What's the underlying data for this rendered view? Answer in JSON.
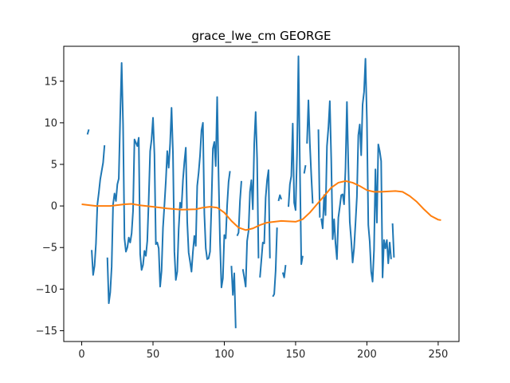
{
  "chart_data": {
    "type": "line",
    "title": "grace_lwe_cm GEORGE",
    "xlabel": "",
    "ylabel": "",
    "xlim": [
      -12.6,
      264.6
    ],
    "ylim": [
      -16.3,
      19.2
    ],
    "xticks": [
      0,
      50,
      100,
      150,
      200,
      250
    ],
    "yticks": [
      -15,
      -10,
      -5,
      0,
      5,
      10,
      15
    ],
    "grid": false,
    "legend": "none",
    "colors": {
      "raw": "#1f77b4",
      "smooth": "#ff7f0e",
      "axes": "#000000"
    },
    "series": [
      {
        "color": "#1f77b4",
        "segments": [
          [
            [
              4,
              8.6
            ],
            [
              5,
              9.2
            ]
          ],
          [
            [
              7,
              -5.3
            ],
            [
              8,
              -8.3
            ],
            [
              9,
              -7.2
            ],
            [
              10,
              -4.5
            ],
            [
              11,
              0.2
            ],
            [
              12,
              1.6
            ],
            [
              13,
              3.2
            ],
            [
              14,
              4.2
            ],
            [
              15,
              5.2
            ],
            [
              16,
              7.3
            ]
          ],
          [
            [
              18,
              -6.2
            ],
            [
              19,
              -11.7
            ],
            [
              20,
              -10.4
            ],
            [
              21,
              -7.3
            ],
            [
              22,
              0.2
            ],
            [
              23,
              1.5
            ],
            [
              24,
              0.6
            ],
            [
              25,
              2.6
            ],
            [
              26,
              3.3
            ],
            [
              27,
              10.8
            ],
            [
              28,
              17.2
            ],
            [
              29,
              9.8
            ],
            [
              30,
              -3.9
            ],
            [
              31,
              -5.5
            ],
            [
              32,
              -5.0
            ],
            [
              33,
              -3.8
            ],
            [
              34,
              -4.4
            ],
            [
              35,
              -3.3
            ],
            [
              36,
              -0.6
            ],
            [
              37,
              8.0
            ],
            [
              38,
              7.6
            ],
            [
              39,
              7.2
            ],
            [
              40,
              8.2
            ],
            [
              41,
              -5.8
            ],
            [
              42,
              -7.7
            ],
            [
              43,
              -7.1
            ],
            [
              44,
              -5.4
            ],
            [
              45,
              -6.0
            ],
            [
              46,
              -4.2
            ],
            [
              47,
              0.8
            ],
            [
              48,
              6.6
            ],
            [
              49,
              8.0
            ],
            [
              50,
              10.6
            ],
            [
              51,
              6.2
            ],
            [
              52,
              -4.6
            ],
            [
              53,
              -4.4
            ],
            [
              54,
              -5.1
            ],
            [
              55,
              -9.7
            ],
            [
              56,
              -7.8
            ],
            [
              57,
              -2.6
            ],
            [
              58,
              0.1
            ],
            [
              59,
              3.0
            ],
            [
              60,
              6.6
            ],
            [
              61,
              4.6
            ],
            [
              62,
              7.5
            ],
            [
              63,
              11.8
            ],
            [
              64,
              6.3
            ],
            [
              65,
              -5.5
            ],
            [
              66,
              -8.9
            ],
            [
              67,
              -7.9
            ],
            [
              68,
              -2.8
            ],
            [
              69,
              0.4
            ],
            [
              70,
              -0.2
            ],
            [
              71,
              3.1
            ],
            [
              72,
              5.3
            ],
            [
              73,
              7.0
            ],
            [
              74,
              -1.9
            ],
            [
              75,
              -5.6
            ],
            [
              76,
              -6.7
            ],
            [
              77,
              -7.9
            ],
            [
              78,
              -5.5
            ],
            [
              79,
              -3.6
            ],
            [
              80,
              -4.8
            ],
            [
              81,
              2.4
            ],
            [
              82,
              4.0
            ],
            [
              83,
              6.1
            ],
            [
              84,
              9.1
            ],
            [
              85,
              10.0
            ],
            [
              86,
              -0.9
            ],
            [
              87,
              -5.1
            ],
            [
              88,
              -6.4
            ],
            [
              89,
              -6.3
            ],
            [
              90,
              -5.5
            ],
            [
              91,
              0.1
            ],
            [
              92,
              6.9
            ],
            [
              93,
              7.7
            ],
            [
              94,
              4.8
            ],
            [
              95,
              13.1
            ],
            [
              96,
              3.5
            ],
            [
              97,
              -4.4
            ],
            [
              98,
              -9.8
            ],
            [
              99,
              -8.7
            ],
            [
              100,
              -3.5
            ],
            [
              101,
              -3.9
            ],
            [
              102,
              0.1
            ],
            [
              103,
              2.9
            ],
            [
              104,
              4.2
            ]
          ],
          [
            [
              105,
              -7.2
            ],
            [
              106,
              -10.7
            ],
            [
              107,
              -8.1
            ],
            [
              108,
              -14.7
            ]
          ],
          [
            [
              109,
              -3.6
            ],
            [
              110,
              -3.2
            ],
            [
              111,
              0.6
            ],
            [
              112,
              3.0
            ]
          ],
          [
            [
              113,
              -7.6
            ],
            [
              114,
              -8.6
            ],
            [
              115,
              -9.7
            ],
            [
              116,
              -4.2
            ],
            [
              117,
              -3.0
            ],
            [
              118,
              1.7
            ],
            [
              119,
              3.1
            ],
            [
              120,
              -0.4
            ],
            [
              121,
              7.5
            ],
            [
              122,
              11.3
            ],
            [
              123,
              5.7
            ],
            [
              124,
              -6.3
            ]
          ],
          [
            [
              125,
              -8.6
            ],
            [
              126,
              -6.5
            ],
            [
              127,
              -4.4
            ],
            [
              128,
              -4.5
            ],
            [
              129,
              1.0
            ],
            [
              130,
              3.1
            ],
            [
              131,
              4.3
            ],
            [
              132,
              -6.3
            ]
          ],
          [
            [
              134,
              -10.9
            ],
            [
              135,
              -10.6
            ],
            [
              136,
              -7.8
            ],
            [
              137,
              -2.6
            ]
          ],
          [
            [
              138,
              0.6
            ],
            [
              139,
              1.3
            ],
            [
              140,
              0.8
            ]
          ],
          [
            [
              141,
              -8.0
            ],
            [
              142,
              -8.6
            ],
            [
              143,
              -7.1
            ]
          ],
          [
            [
              145,
              -0.1
            ],
            [
              146,
              2.6
            ],
            [
              147,
              3.6
            ],
            [
              148,
              9.9
            ],
            [
              149,
              0.4
            ],
            [
              150,
              -0.5
            ],
            [
              151,
              6.2
            ],
            [
              152,
              18.0
            ],
            [
              153,
              4.9
            ],
            [
              154,
              -7.0
            ],
            [
              155,
              -6.0
            ]
          ],
          [
            [
              156,
              3.9
            ],
            [
              157,
              4.9
            ]
          ],
          [
            [
              158,
              7.5
            ],
            [
              159,
              12.7
            ],
            [
              160,
              7.5
            ],
            [
              161,
              3.7
            ],
            [
              162,
              0.3
            ]
          ],
          [
            [
              166,
              9.2
            ],
            [
              167,
              -1.4
            ]
          ],
          [
            [
              168,
              -1.5
            ],
            [
              169,
              -2.7
            ],
            [
              170,
              1.3
            ],
            [
              171,
              -1.1
            ],
            [
              172,
              7.2
            ],
            [
              173,
              9.4
            ],
            [
              174,
              12.6
            ],
            [
              175,
              5.6
            ],
            [
              176,
              -4.0
            ],
            [
              177,
              -1.6
            ],
            [
              178,
              -4.5
            ],
            [
              179,
              -6.4
            ],
            [
              180,
              -1.4
            ],
            [
              181,
              -0.1
            ],
            [
              182,
              1.3
            ],
            [
              183,
              1.4
            ],
            [
              184,
              0.2
            ],
            [
              185,
              4.5
            ],
            [
              186,
              12.5
            ],
            [
              187,
              4.8
            ],
            [
              188,
              -1.9
            ],
            [
              189,
              -4.1
            ],
            [
              190,
              -6.8
            ],
            [
              191,
              -5.1
            ],
            [
              192,
              -2.1
            ],
            [
              193,
              1.1
            ],
            [
              194,
              8.5
            ],
            [
              195,
              9.8
            ],
            [
              196,
              6.1
            ],
            [
              197,
              12.2
            ],
            [
              198,
              13.7
            ],
            [
              199,
              17.7
            ],
            [
              200,
              10.4
            ],
            [
              201,
              -2.3
            ],
            [
              202,
              -4.3
            ],
            [
              203,
              -7.9
            ],
            [
              204,
              -9.1
            ],
            [
              205,
              -5.3
            ],
            [
              206,
              4.4
            ],
            [
              207,
              -2.0
            ],
            [
              208,
              7.4
            ],
            [
              209,
              6.6
            ],
            [
              210,
              5.4
            ],
            [
              211,
              -8.6
            ],
            [
              212,
              -4.1
            ],
            [
              213,
              -5.1
            ],
            [
              214,
              -4.1
            ],
            [
              215,
              -6.9
            ],
            [
              216,
              -4.4
            ],
            [
              217,
              -6.4
            ]
          ],
          [
            [
              218,
              -2.1
            ],
            [
              219,
              -6.2
            ]
          ]
        ]
      },
      {
        "color": "#ff7f0e",
        "points": [
          [
            0,
            0.2
          ],
          [
            10,
            0.0
          ],
          [
            20,
            0.0
          ],
          [
            30,
            0.2
          ],
          [
            35,
            0.25
          ],
          [
            40,
            0.1
          ],
          [
            50,
            -0.1
          ],
          [
            60,
            -0.3
          ],
          [
            70,
            -0.45
          ],
          [
            80,
            -0.4
          ],
          [
            85,
            -0.2
          ],
          [
            90,
            -0.1
          ],
          [
            95,
            -0.2
          ],
          [
            100,
            -0.8
          ],
          [
            105,
            -1.8
          ],
          [
            110,
            -2.6
          ],
          [
            115,
            -2.9
          ],
          [
            120,
            -2.7
          ],
          [
            125,
            -2.3
          ],
          [
            130,
            -2.0
          ],
          [
            140,
            -1.8
          ],
          [
            150,
            -1.9
          ],
          [
            155,
            -1.6
          ],
          [
            160,
            -0.8
          ],
          [
            165,
            0.2
          ],
          [
            170,
            1.2
          ],
          [
            175,
            2.2
          ],
          [
            180,
            2.8
          ],
          [
            185,
            3.0
          ],
          [
            190,
            2.8
          ],
          [
            195,
            2.4
          ],
          [
            200,
            1.9
          ],
          [
            205,
            1.7
          ],
          [
            210,
            1.7
          ],
          [
            220,
            1.8
          ],
          [
            225,
            1.7
          ],
          [
            230,
            1.2
          ],
          [
            235,
            0.5
          ],
          [
            240,
            -0.4
          ],
          [
            245,
            -1.2
          ],
          [
            250,
            -1.65
          ],
          [
            252,
            -1.7
          ]
        ]
      }
    ]
  }
}
